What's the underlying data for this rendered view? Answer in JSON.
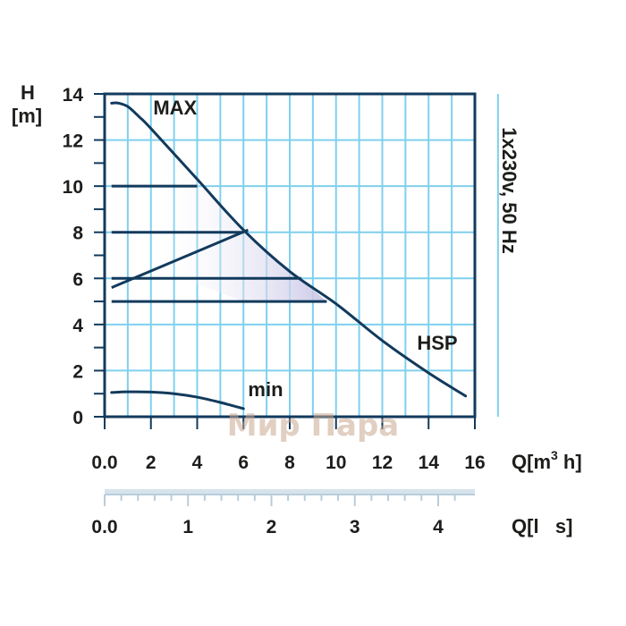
{
  "chart_data": {
    "type": "line",
    "x_axis": {
      "label": "Q[m³ h]",
      "label_base": "Q[m",
      "label_sup": "3",
      "label_tail": " h]",
      "range": [
        0,
        16
      ],
      "ticks": [
        "0.0",
        "2",
        "4",
        "6",
        "8",
        "10",
        "12",
        "14",
        "16"
      ]
    },
    "y_axis": {
      "label_top": "H",
      "label_bottom": "[m]",
      "range": [
        0,
        14
      ],
      "ticks": [
        "0",
        "2",
        "4",
        "6",
        "8",
        "10",
        "12",
        "14"
      ]
    },
    "secondary_x_axis": {
      "label": "Q[l s]",
      "label_text": "Q[l   s]",
      "range": [
        0,
        4.44
      ],
      "ticks": [
        "0.0",
        "1",
        "2",
        "3",
        "4"
      ]
    },
    "grid": true,
    "side_label": "1x230v, 50 Hz",
    "series": [
      {
        "name": "MAX",
        "color": "#123a5c",
        "x": [
          0.3,
          0.6,
          1.0,
          1.5,
          2.0,
          4.0,
          6.0,
          8.0,
          10.0,
          12.0,
          14.0,
          15.6
        ],
        "y": [
          13.6,
          13.6,
          13.45,
          13.0,
          12.5,
          10.3,
          8.1,
          6.3,
          4.9,
          3.3,
          1.9,
          0.9
        ]
      },
      {
        "name": "min",
        "color": "#123a5c",
        "x": [
          0.3,
          1.0,
          2.0,
          3.0,
          4.0,
          5.0,
          6.0
        ],
        "y": [
          1.05,
          1.08,
          1.07,
          1.0,
          0.85,
          0.62,
          0.35
        ]
      }
    ],
    "segments": [
      {
        "x": [
          0.3,
          4.0
        ],
        "y": [
          10.0,
          10.0
        ]
      },
      {
        "x": [
          0.3,
          6.0
        ],
        "y": [
          8.0,
          8.0
        ]
      },
      {
        "x": [
          0.3,
          8.5
        ],
        "y": [
          6.0,
          6.0
        ]
      },
      {
        "x": [
          0.3,
          9.6
        ],
        "y": [
          5.0,
          5.0
        ]
      },
      {
        "x": [
          0.3,
          6.2
        ],
        "y": [
          5.6,
          8.1
        ]
      }
    ],
    "annotations": [
      {
        "text": "MAX",
        "x": 2.1,
        "y": 13.1
      },
      {
        "text": "HSP",
        "x": 13.5,
        "y": 2.9
      },
      {
        "text": "min",
        "x": 6.2,
        "y": 0.9
      }
    ],
    "shaded_region": {
      "x": [
        2.0,
        6.0,
        9.6,
        6.0,
        2.0
      ],
      "y": [
        12.5,
        8.1,
        5.0,
        5.0,
        6.5
      ]
    },
    "watermark": "Мир Пара"
  }
}
